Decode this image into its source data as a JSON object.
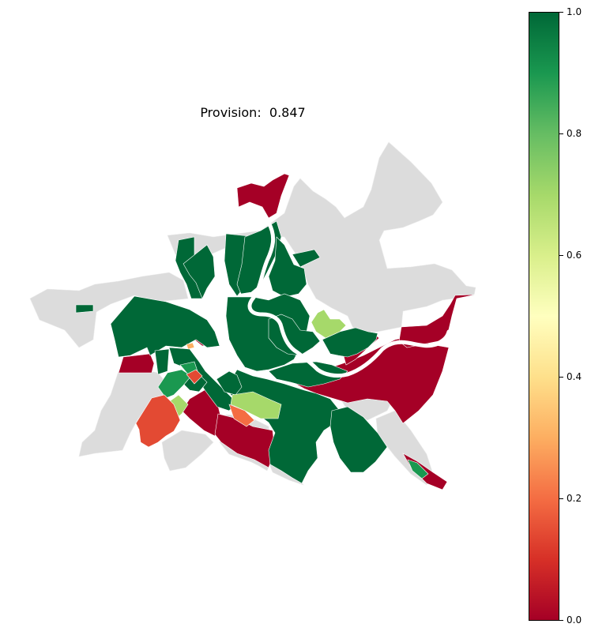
{
  "map": {
    "title": "Provision:  0.847",
    "colormap_stops": [
      "#a50026",
      "#d73027",
      "#f46d43",
      "#fdae61",
      "#fee08b",
      "#ffffbf",
      "#d9ef8b",
      "#a6d96a",
      "#66bd63",
      "#1a9850",
      "#006837"
    ],
    "no_data_color": "#dcdcdc",
    "river_color": "#ffffff"
  },
  "colorbar": {
    "min": 0.0,
    "max": 1.0,
    "ticks": [
      "0.0",
      "0.2",
      "0.4",
      "0.6",
      "0.8",
      "1.0"
    ]
  }
}
